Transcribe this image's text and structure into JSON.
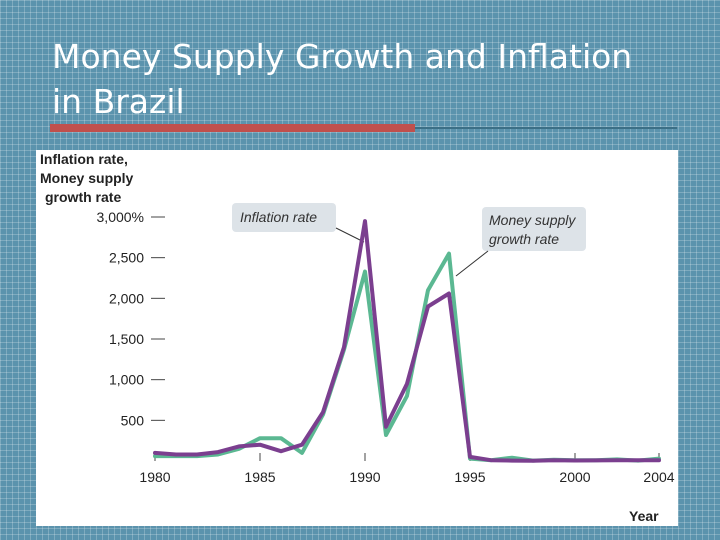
{
  "slide": {
    "title_line1": "Money Supply Growth and Inflation",
    "title_line2": "in Brazil"
  },
  "colors": {
    "background": "#5b93ad",
    "accent": "#c0504d",
    "inflation": "#7b3f8f",
    "money_supply": "#5bb892",
    "annotation_box": "#dde3e8"
  },
  "chart_data": {
    "type": "line",
    "ylabel": [
      "Inflation rate,",
      "Money supply",
      "growth rate"
    ],
    "xlabel": "Year",
    "ylim": [
      0,
      3000
    ],
    "xlim": [
      1980,
      2004
    ],
    "yticks": [
      {
        "value": 500,
        "label": "500"
      },
      {
        "value": 1000,
        "label": "1,000"
      },
      {
        "value": 1500,
        "label": "1,500"
      },
      {
        "value": 2000,
        "label": "2,000"
      },
      {
        "value": 2500,
        "label": "2,500"
      },
      {
        "value": 3000,
        "label": "3,000%"
      }
    ],
    "xticks": [
      {
        "value": 1980,
        "label": "1980"
      },
      {
        "value": 1985,
        "label": "1985"
      },
      {
        "value": 1990,
        "label": "1990"
      },
      {
        "value": 1995,
        "label": "1995"
      },
      {
        "value": 2000,
        "label": "2000"
      },
      {
        "value": 2004,
        "label": "2004"
      }
    ],
    "x": [
      1980,
      1981,
      1982,
      1983,
      1984,
      1985,
      1986,
      1987,
      1988,
      1989,
      1990,
      1991,
      1992,
      1993,
      1994,
      1995,
      1996,
      1997,
      1998,
      1999,
      2000,
      2001,
      2002,
      2003,
      2004
    ],
    "series": [
      {
        "name": "Inflation rate",
        "color": "#7b3f8f",
        "values": [
          100,
          80,
          80,
          110,
          180,
          200,
          120,
          200,
          600,
          1400,
          2950,
          420,
          950,
          1900,
          2060,
          50,
          10,
          5,
          2,
          8,
          6,
          7,
          10,
          9,
          8
        ]
      },
      {
        "name": "Money supply growth rate",
        "color": "#5bb892",
        "values": [
          60,
          60,
          60,
          80,
          150,
          280,
          280,
          100,
          570,
          1370,
          2330,
          320,
          800,
          2100,
          2550,
          30,
          10,
          40,
          5,
          15,
          8,
          10,
          20,
          5,
          30
        ]
      }
    ],
    "annotations": [
      {
        "lines": [
          "Inflation rate"
        ],
        "series": 0
      },
      {
        "lines": [
          "Money supply",
          "growth rate"
        ],
        "series": 1
      }
    ],
    "grid": false,
    "legend": "none"
  }
}
